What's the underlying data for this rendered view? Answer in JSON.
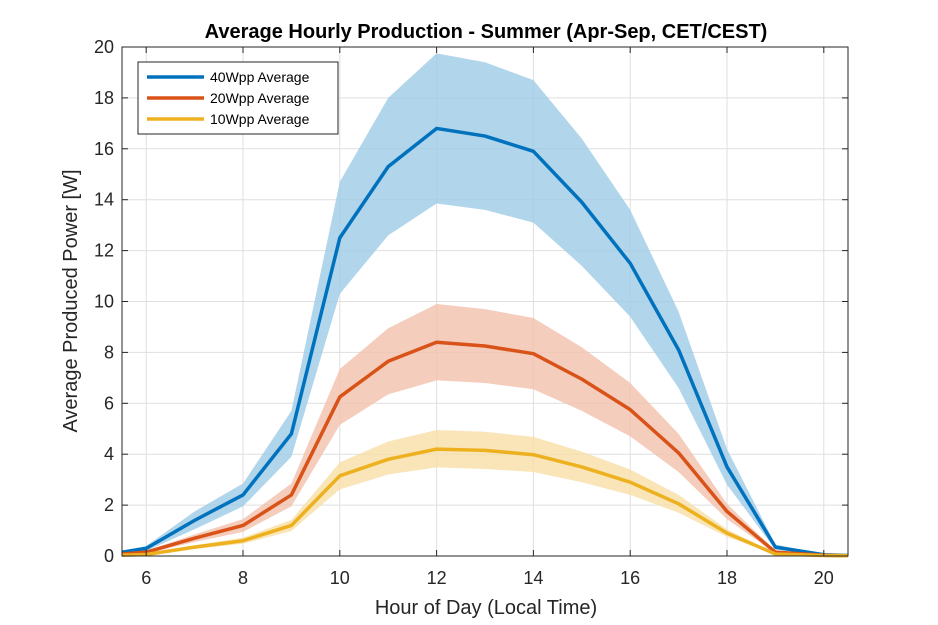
{
  "chart_data": {
    "type": "line",
    "title": "Average Hourly Production - Summer (Apr-Sep, CET/CEST)",
    "xlabel": "Hour of Day (Local Time)",
    "ylabel": "Average Produced Power [W]",
    "xlim": [
      5.5,
      20.5
    ],
    "ylim": [
      0,
      20
    ],
    "xticks": [
      6,
      8,
      10,
      12,
      14,
      16,
      18,
      20
    ],
    "yticks": [
      0,
      2,
      4,
      6,
      8,
      10,
      12,
      14,
      16,
      18,
      20
    ],
    "grid": true,
    "legend_position": "top-left",
    "series": [
      {
        "name": "40Wpp Average",
        "color": "#0072BD",
        "band_color": "#9ECAE6",
        "x": [
          5.5,
          6,
          7,
          8,
          9,
          10,
          11,
          12,
          13,
          14,
          15,
          16,
          17,
          18,
          19,
          20,
          20.5
        ],
        "values": [
          0.15,
          0.3,
          1.4,
          2.4,
          4.8,
          12.5,
          15.3,
          16.8,
          16.5,
          15.9,
          13.9,
          11.5,
          8.1,
          3.5,
          0.35,
          0.05,
          0.02
        ],
        "upper": [
          0.2,
          0.4,
          1.75,
          2.85,
          5.7,
          14.7,
          18.0,
          19.75,
          19.4,
          18.7,
          16.4,
          13.6,
          9.6,
          4.2,
          0.45,
          0.07,
          0.03
        ],
        "lower": [
          0.1,
          0.2,
          1.05,
          1.95,
          3.9,
          10.3,
          12.6,
          13.85,
          13.6,
          13.1,
          11.4,
          9.4,
          6.6,
          2.8,
          0.25,
          0.03,
          0.01
        ]
      },
      {
        "name": "20Wpp Average",
        "color": "#D95319",
        "band_color": "#F2C0AD",
        "x": [
          5.5,
          6,
          7,
          8,
          9,
          10,
          11,
          12,
          13,
          14,
          15,
          16,
          17,
          18,
          19,
          20,
          20.5
        ],
        "values": [
          0.08,
          0.15,
          0.7,
          1.2,
          2.4,
          6.25,
          7.65,
          8.4,
          8.25,
          7.95,
          6.95,
          5.75,
          4.05,
          1.75,
          0.15,
          0.03,
          0.01
        ],
        "upper": [
          0.1,
          0.2,
          0.85,
          1.45,
          2.85,
          7.35,
          8.95,
          9.9,
          9.7,
          9.35,
          8.2,
          6.8,
          4.8,
          2.05,
          0.2,
          0.04,
          0.02
        ],
        "lower": [
          0.05,
          0.1,
          0.55,
          0.95,
          1.95,
          5.15,
          6.35,
          6.9,
          6.8,
          6.55,
          5.7,
          4.7,
          3.3,
          1.45,
          0.1,
          0.02,
          0.01
        ]
      },
      {
        "name": "10Wpp Average",
        "color": "#EDB120",
        "band_color": "#F8DFA6",
        "x": [
          5.5,
          6,
          7,
          8,
          9,
          10,
          11,
          12,
          13,
          14,
          15,
          16,
          17,
          18,
          19,
          20,
          20.5
        ],
        "values": [
          0.03,
          0.06,
          0.35,
          0.6,
          1.2,
          3.15,
          3.8,
          4.2,
          4.15,
          3.98,
          3.5,
          2.9,
          2.05,
          0.9,
          0.08,
          0.02,
          0.01
        ],
        "upper": [
          0.04,
          0.08,
          0.42,
          0.72,
          1.42,
          3.68,
          4.5,
          4.95,
          4.88,
          4.68,
          4.1,
          3.4,
          2.4,
          1.05,
          0.1,
          0.03,
          0.02
        ],
        "lower": [
          0.02,
          0.04,
          0.28,
          0.48,
          0.98,
          2.62,
          3.2,
          3.48,
          3.42,
          3.3,
          2.9,
          2.4,
          1.7,
          0.75,
          0.06,
          0.01,
          0.0
        ]
      }
    ]
  }
}
